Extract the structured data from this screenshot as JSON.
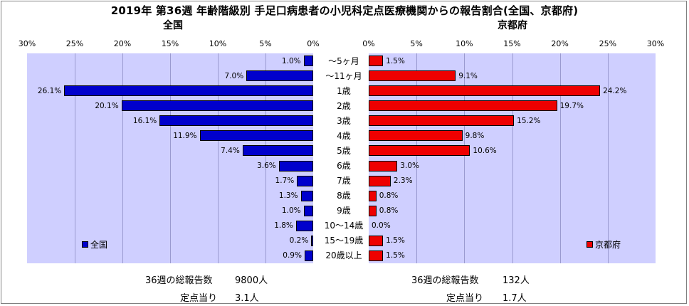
{
  "chart_data": [
    {
      "type": "bar",
      "orientation": "horizontal",
      "subtitle": "全国",
      "x_reversed": true,
      "xlim": [
        0,
        30
      ],
      "xticks": [
        "30%",
        "25%",
        "20%",
        "15%",
        "10%",
        "5%",
        "0%"
      ],
      "categories": [
        "～5ヶ月",
        "～11ヶ月",
        "1歳",
        "2歳",
        "3歳",
        "4歳",
        "5歳",
        "6歳",
        "7歳",
        "8歳",
        "9歳",
        "10～14歳",
        "15～19歳",
        "20歳以上"
      ],
      "series": [
        {
          "name": "全国",
          "color": "#0000cc",
          "values": [
            1.0,
            7.0,
            26.1,
            20.1,
            16.1,
            11.9,
            7.4,
            3.6,
            1.7,
            1.3,
            1.0,
            1.8,
            0.2,
            0.9
          ],
          "labels": [
            "1.0%",
            "7.0%",
            "26.1%",
            "20.1%",
            "16.1%",
            "11.9%",
            "7.4%",
            "3.6%",
            "1.7%",
            "1.3%",
            "1.0%",
            "1.8%",
            "0.2%",
            "0.9%"
          ]
        }
      ],
      "legend": "bottom-left",
      "grid": true
    },
    {
      "type": "bar",
      "orientation": "horizontal",
      "subtitle": "京都府",
      "x_reversed": false,
      "xlim": [
        0,
        30
      ],
      "xticks": [
        "0%",
        "5%",
        "10%",
        "15%",
        "20%",
        "25%",
        "30%"
      ],
      "categories": [
        "～5ヶ月",
        "～11ヶ月",
        "1歳",
        "2歳",
        "3歳",
        "4歳",
        "5歳",
        "6歳",
        "7歳",
        "8歳",
        "9歳",
        "10～14歳",
        "15～19歳",
        "20歳以上"
      ],
      "series": [
        {
          "name": "京都府",
          "color": "#ee0000",
          "values": [
            1.5,
            9.1,
            24.2,
            19.7,
            15.2,
            9.8,
            10.6,
            3.0,
            2.3,
            0.8,
            0.8,
            0.0,
            1.5,
            1.5
          ],
          "labels": [
            "1.5%",
            "9.1%",
            "24.2%",
            "19.7%",
            "15.2%",
            "9.8%",
            "10.6%",
            "3.0%",
            "2.3%",
            "0.8%",
            "0.8%",
            "0.0%",
            "1.5%",
            "1.5%"
          ]
        }
      ],
      "legend": "bottom-right",
      "grid": true
    }
  ],
  "title": "2019年 第36週 年齢階級別 手足口病患者の小児科定点医療機関からの報告割合(全国、京都府)",
  "footer": {
    "national": {
      "total_label": "36週の総報告数",
      "total_value": "9800人",
      "per_label": "定点当り",
      "per_value": "3.1人"
    },
    "kyoto": {
      "total_label": "36週の総報告数",
      "total_value": "132人",
      "per_label": "定点当り",
      "per_value": "1.7人"
    }
  }
}
